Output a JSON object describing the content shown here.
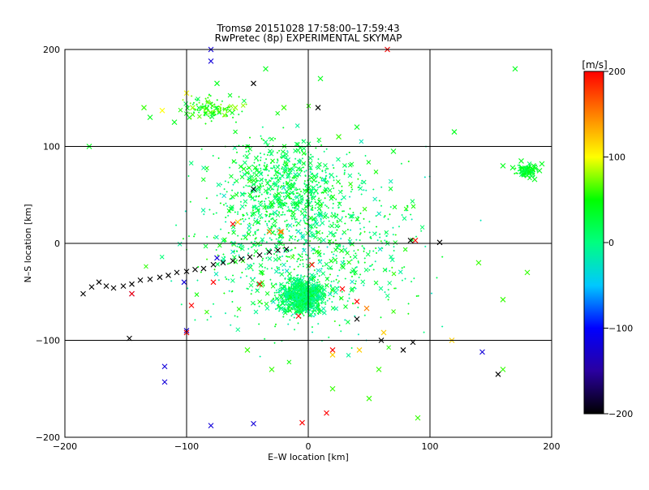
{
  "chart_data": {
    "type": "scatter",
    "title": "Tromsø 20151028 17:58:00–17:59:43",
    "subtitle": "RwPretec (8p) EXPERIMENTAL SKYMAP",
    "xlabel": "E–W location [km]",
    "ylabel": "N–S location [km]",
    "xlim": [
      -200,
      200
    ],
    "ylim": [
      -200,
      200
    ],
    "xticks": [
      -200,
      -100,
      0,
      100,
      200
    ],
    "yticks": [
      -200,
      -100,
      0,
      100,
      200
    ],
    "xtick_labels": [
      "−200",
      "−100",
      "0",
      "100",
      "200"
    ],
    "ytick_labels": [
      "−200",
      "−100",
      "0",
      "100",
      "200"
    ],
    "grid": true,
    "colorbar": {
      "unit_label": "[m/s]",
      "range": [
        -200,
        200
      ],
      "ticks": [
        200,
        100,
        0,
        -100,
        -200
      ],
      "tick_labels": [
        "200",
        "100",
        "0",
        "−100",
        "−200"
      ],
      "colors": [
        "#000000",
        "#2a00a0",
        "#0000ff",
        "#00c8ff",
        "#00ff80",
        "#00ff00",
        "#ffff00",
        "#ff8000",
        "#ff0000"
      ]
    },
    "series": [
      {
        "marker": "cross-and-dot",
        "points": [
          [
            -185,
            -52,
            -200
          ],
          [
            -178,
            -45,
            -200
          ],
          [
            -172,
            -40,
            -200
          ],
          [
            -166,
            -44,
            -200
          ],
          [
            -160,
            -46,
            -200
          ],
          [
            -152,
            -44,
            -200
          ],
          [
            -145,
            -42,
            -200
          ],
          [
            -138,
            -38,
            -200
          ],
          [
            -130,
            -37,
            -200
          ],
          [
            -122,
            -35,
            -200
          ],
          [
            -115,
            -33,
            -200
          ],
          [
            -108,
            -30,
            -200
          ],
          [
            -100,
            -29,
            -200
          ],
          [
            -93,
            -27,
            -200
          ],
          [
            -86,
            -26,
            -200
          ],
          [
            -78,
            -22,
            -200
          ],
          [
            -70,
            -20,
            -200
          ],
          [
            -62,
            -18,
            -200
          ],
          [
            -55,
            -16,
            -200
          ],
          [
            -48,
            -14,
            -200
          ],
          [
            -40,
            -12,
            -200
          ],
          [
            -32,
            -9,
            -200
          ],
          [
            -25,
            -7,
            -200
          ],
          [
            -18,
            -6,
            -200
          ],
          [
            -45,
            165,
            -200
          ],
          [
            8,
            140,
            -200
          ],
          [
            -45,
            56,
            -200
          ],
          [
            108,
            1,
            -200
          ],
          [
            84,
            3,
            -200
          ],
          [
            60,
            -100,
            -200
          ],
          [
            86,
            -102,
            -200
          ],
          [
            78,
            -110,
            -200
          ],
          [
            156,
            -135,
            -200
          ],
          [
            40,
            -78,
            -200
          ],
          [
            -147,
            -98,
            -200
          ],
          [
            -80,
            188,
            -120
          ],
          [
            -80,
            200,
            -120
          ],
          [
            -145,
            -52,
            -120
          ],
          [
            -102,
            -40,
            -120
          ],
          [
            -75,
            -15,
            -120
          ],
          [
            -100,
            -90,
            -120
          ],
          [
            -118,
            -127,
            -120
          ],
          [
            -45,
            -186,
            -120
          ],
          [
            -80,
            -188,
            -120
          ],
          [
            143,
            -112,
            -120
          ],
          [
            -118,
            -143,
            -120
          ],
          [
            65,
            200,
            200
          ],
          [
            -145,
            -52,
            200
          ],
          [
            -78,
            -40,
            200
          ],
          [
            -96,
            -64,
            200
          ],
          [
            -100,
            -92,
            200
          ],
          [
            -40,
            -42,
            200
          ],
          [
            3,
            -22,
            200
          ],
          [
            -8,
            -75,
            200
          ],
          [
            28,
            -47,
            200
          ],
          [
            40,
            -60,
            200
          ],
          [
            20,
            -110,
            200
          ],
          [
            15,
            -175,
            200
          ],
          [
            -5,
            -185,
            200
          ],
          [
            88,
            3,
            200
          ],
          [
            -62,
            20,
            200
          ],
          [
            -32,
            12,
            150
          ],
          [
            -22,
            12,
            150
          ],
          [
            48,
            -67,
            150
          ],
          [
            -23,
            12,
            150
          ],
          [
            -58,
            22,
            120
          ],
          [
            62,
            -92,
            120
          ],
          [
            42,
            -110,
            120
          ],
          [
            20,
            -115,
            120
          ],
          [
            118,
            -100,
            120
          ],
          [
            -120,
            137,
            100
          ],
          [
            -100,
            155,
            100
          ],
          [
            -95,
            140,
            80
          ],
          [
            -60,
            140,
            80
          ],
          [
            -20,
            140,
            60
          ],
          [
            25,
            110,
            60
          ],
          [
            58,
            -130,
            60
          ],
          [
            50,
            -160,
            60
          ],
          [
            140,
            -20,
            60
          ],
          [
            160,
            -58,
            60
          ],
          [
            180,
            -30,
            60
          ],
          [
            160,
            -130,
            60
          ],
          [
            -135,
            140,
            60
          ],
          [
            -50,
            -110,
            60
          ],
          [
            -30,
            -130,
            60
          ],
          [
            20,
            -150,
            60
          ],
          [
            90,
            -180,
            60
          ],
          [
            -180,
            100,
            40
          ],
          [
            -130,
            130,
            40
          ],
          [
            -110,
            125,
            40
          ],
          [
            -75,
            165,
            40
          ],
          [
            -35,
            180,
            40
          ],
          [
            10,
            170,
            40
          ],
          [
            40,
            120,
            40
          ],
          [
            70,
            95,
            40
          ],
          [
            120,
            115,
            40
          ],
          [
            170,
            180,
            40
          ],
          [
            185,
            80,
            40
          ],
          [
            190,
            75,
            40
          ],
          [
            192,
            82,
            40
          ],
          [
            180,
            70,
            40
          ],
          [
            175,
            85,
            40
          ],
          [
            168,
            78,
            40
          ],
          [
            160,
            80,
            40
          ],
          [
            186,
            66,
            40
          ]
        ]
      }
    ]
  }
}
